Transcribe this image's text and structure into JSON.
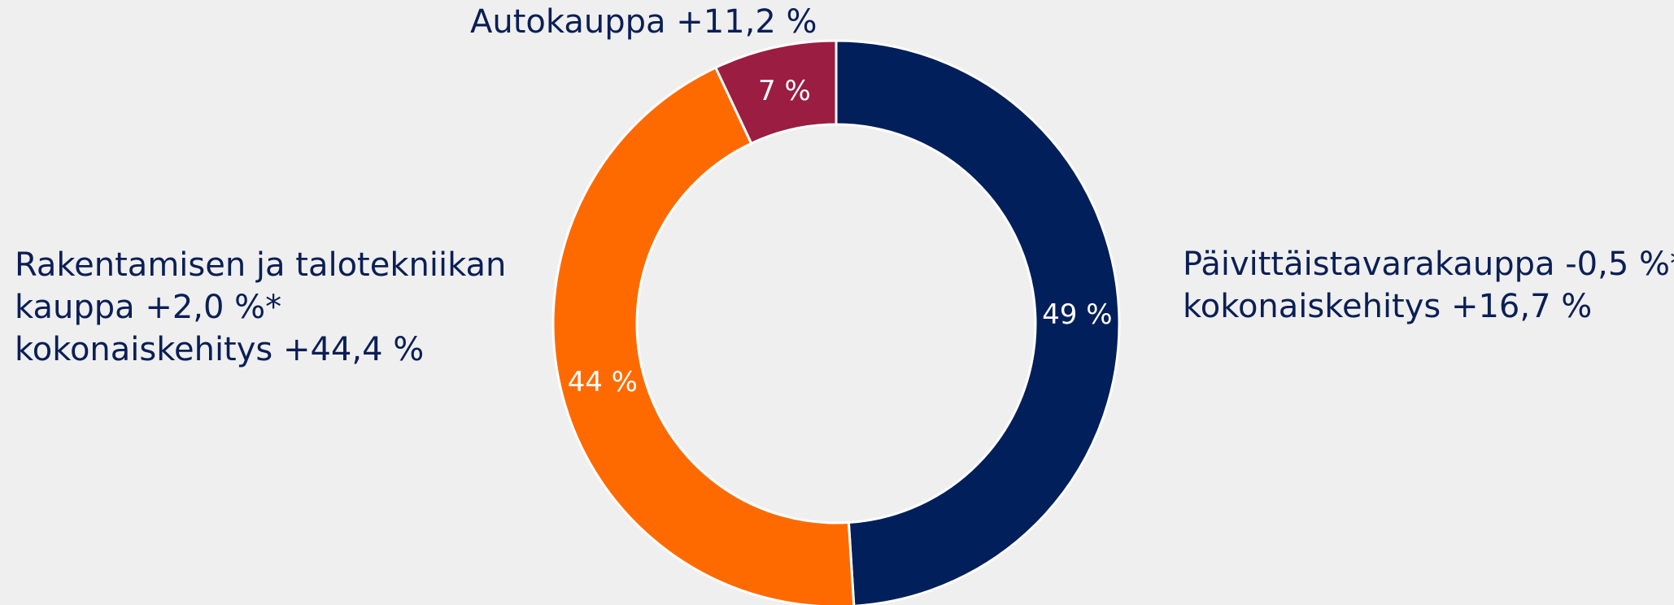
{
  "chart_data": {
    "type": "donut",
    "values": [
      49,
      44,
      7
    ],
    "value_labels": [
      "49 %",
      "44 %",
      "7 %"
    ],
    "colors": [
      "#001f5b",
      "#ff6a00",
      "#9b1d42"
    ],
    "segment_labels": [
      [
        "Päivittäistavarakauppa -0,5 %*",
        "kokonaiskehitys +16,7 %"
      ],
      [
        "Rakentamisen ja talotekniikan",
        "kauppa +2,0 %*",
        "kokonaiskehitys +44,4 %"
      ],
      [
        "Autokauppa +11,2 %"
      ]
    ]
  }
}
